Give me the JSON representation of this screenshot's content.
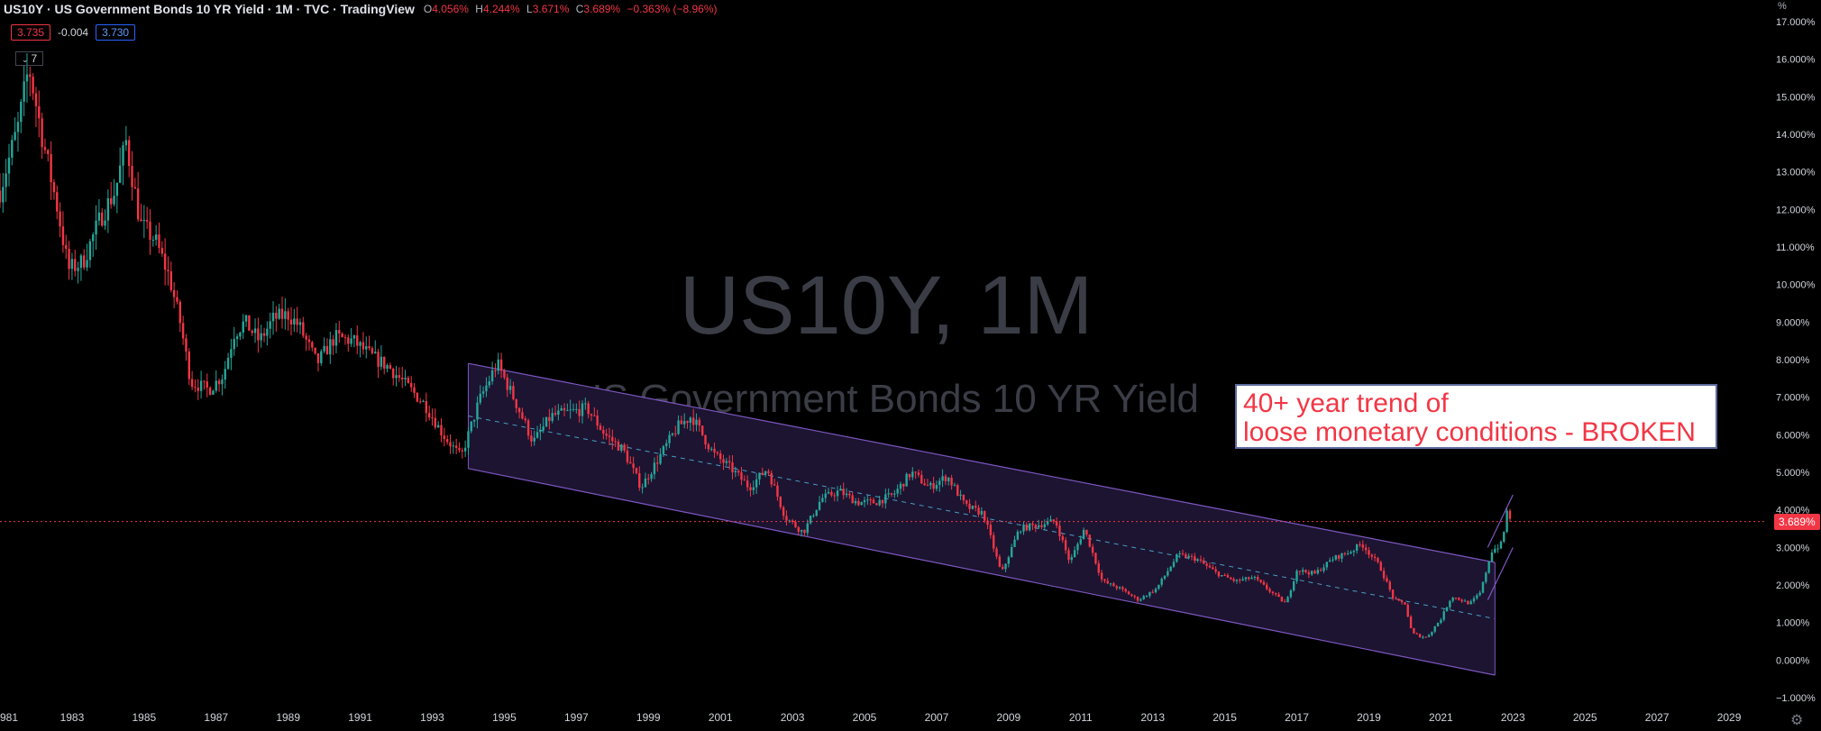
{
  "header": {
    "title": "US10Y · US Government Bonds 10 YR Yield · 1M · TVC · TradingView",
    "ohlc": [
      {
        "key": "O",
        "value": "4.056%"
      },
      {
        "key": "H",
        "value": "4.244%"
      },
      {
        "key": "L",
        "value": "3.671%"
      },
      {
        "key": "C",
        "value": "3.689%"
      },
      {
        "key": "",
        "value": "−0.363% (−8.96%)"
      }
    ],
    "sell": "3.735",
    "spread": "-0.004",
    "buy": "3.730",
    "indicator_count": "7"
  },
  "watermark": {
    "symbol": "US10Y, 1M",
    "name": "US Government Bonds 10 YR Yield"
  },
  "annotation": "40+ year trend of\nloose monetary conditions - BROKEN",
  "price_label": "3.689%",
  "colors": {
    "up": "#26a69a",
    "down": "#f23645",
    "channel": "#7e57c2",
    "channel_fill": "#1c1430",
    "midline": "#4a9ec9",
    "price_line": "#f23645"
  },
  "icons": {
    "settings": "gear-icon",
    "collapse": "chevron-down-icon"
  },
  "chart_data": {
    "type": "candlestick",
    "y_unit": "%",
    "ylim": [
      -1.0,
      17.0
    ],
    "y_ticks": [
      "−1.000%",
      "0.000%",
      "1.000%",
      "2.000%",
      "3.000%",
      "4.000%",
      "5.000%",
      "6.000%",
      "7.000%",
      "8.000%",
      "9.000%",
      "10.000%",
      "11.000%",
      "12.000%",
      "13.000%",
      "14.000%",
      "15.000%",
      "16.000%",
      "17.000%"
    ],
    "x_ticks": [
      "981",
      "1983",
      "1985",
      "1987",
      "1989",
      "1991",
      "1993",
      "1995",
      "1997",
      "1999",
      "2001",
      "2003",
      "2005",
      "2007",
      "2009",
      "2011",
      "2013",
      "2015",
      "2017",
      "2019",
      "2021",
      "2023",
      "2025",
      "2027",
      "2029"
    ],
    "xlim": [
      1981.0,
      2030.0
    ],
    "close_points": [
      {
        "x": 1981.0,
        "y": 12.5
      },
      {
        "x": 1981.5,
        "y": 14.2
      },
      {
        "x": 1981.8,
        "y": 15.8
      },
      {
        "x": 1982.2,
        "y": 13.8
      },
      {
        "x": 1982.6,
        "y": 12.0
      },
      {
        "x": 1982.9,
        "y": 10.4
      },
      {
        "x": 1983.3,
        "y": 10.6
      },
      {
        "x": 1983.8,
        "y": 11.8
      },
      {
        "x": 1984.2,
        "y": 12.5
      },
      {
        "x": 1984.5,
        "y": 13.8
      },
      {
        "x": 1984.9,
        "y": 11.6
      },
      {
        "x": 1985.3,
        "y": 11.2
      },
      {
        "x": 1985.7,
        "y": 10.2
      },
      {
        "x": 1986.0,
        "y": 9.0
      },
      {
        "x": 1986.3,
        "y": 7.4
      },
      {
        "x": 1986.8,
        "y": 7.2
      },
      {
        "x": 1987.2,
        "y": 7.6
      },
      {
        "x": 1987.5,
        "y": 8.7
      },
      {
        "x": 1987.8,
        "y": 9.0
      },
      {
        "x": 1988.2,
        "y": 8.5
      },
      {
        "x": 1988.6,
        "y": 9.1
      },
      {
        "x": 1989.0,
        "y": 9.2
      },
      {
        "x": 1989.3,
        "y": 8.9
      },
      {
        "x": 1989.8,
        "y": 7.9
      },
      {
        "x": 1990.3,
        "y": 8.6
      },
      {
        "x": 1990.8,
        "y": 8.5
      },
      {
        "x": 1991.3,
        "y": 8.1
      },
      {
        "x": 1991.8,
        "y": 7.8
      },
      {
        "x": 1992.3,
        "y": 7.3
      },
      {
        "x": 1992.8,
        "y": 6.8
      },
      {
        "x": 1993.3,
        "y": 6.0
      },
      {
        "x": 1993.8,
        "y": 5.4
      },
      {
        "x": 1994.3,
        "y": 6.9
      },
      {
        "x": 1994.8,
        "y": 7.9
      },
      {
        "x": 1995.3,
        "y": 6.9
      },
      {
        "x": 1995.8,
        "y": 5.8
      },
      {
        "x": 1996.3,
        "y": 6.5
      },
      {
        "x": 1996.8,
        "y": 6.6
      },
      {
        "x": 1997.3,
        "y": 6.7
      },
      {
        "x": 1997.8,
        "y": 6.0
      },
      {
        "x": 1998.3,
        "y": 5.6
      },
      {
        "x": 1998.8,
        "y": 4.6
      },
      {
        "x": 1999.3,
        "y": 5.4
      },
      {
        "x": 1999.8,
        "y": 6.2
      },
      {
        "x": 2000.2,
        "y": 6.5
      },
      {
        "x": 2000.8,
        "y": 5.5
      },
      {
        "x": 2001.3,
        "y": 5.1
      },
      {
        "x": 2001.8,
        "y": 4.6
      },
      {
        "x": 2002.3,
        "y": 5.1
      },
      {
        "x": 2002.8,
        "y": 3.8
      },
      {
        "x": 2003.3,
        "y": 3.4
      },
      {
        "x": 2003.8,
        "y": 4.3
      },
      {
        "x": 2004.3,
        "y": 4.5
      },
      {
        "x": 2004.8,
        "y": 4.2
      },
      {
        "x": 2005.3,
        "y": 4.2
      },
      {
        "x": 2005.8,
        "y": 4.4
      },
      {
        "x": 2006.3,
        "y": 5.0
      },
      {
        "x": 2006.8,
        "y": 4.6
      },
      {
        "x": 2007.3,
        "y": 4.9
      },
      {
        "x": 2007.8,
        "y": 4.1
      },
      {
        "x": 2008.3,
        "y": 3.9
      },
      {
        "x": 2008.8,
        "y": 2.3
      },
      {
        "x": 2009.3,
        "y": 3.5
      },
      {
        "x": 2009.8,
        "y": 3.6
      },
      {
        "x": 2010.3,
        "y": 3.7
      },
      {
        "x": 2010.7,
        "y": 2.6
      },
      {
        "x": 2011.1,
        "y": 3.5
      },
      {
        "x": 2011.6,
        "y": 2.1
      },
      {
        "x": 2012.1,
        "y": 1.9
      },
      {
        "x": 2012.6,
        "y": 1.6
      },
      {
        "x": 2013.1,
        "y": 1.9
      },
      {
        "x": 2013.7,
        "y": 2.8
      },
      {
        "x": 2014.2,
        "y": 2.7
      },
      {
        "x": 2014.8,
        "y": 2.3
      },
      {
        "x": 2015.3,
        "y": 2.1
      },
      {
        "x": 2015.8,
        "y": 2.2
      },
      {
        "x": 2016.3,
        "y": 1.8
      },
      {
        "x": 2016.7,
        "y": 1.5
      },
      {
        "x": 2017.0,
        "y": 2.4
      },
      {
        "x": 2017.5,
        "y": 2.3
      },
      {
        "x": 2018.0,
        "y": 2.7
      },
      {
        "x": 2018.5,
        "y": 2.9
      },
      {
        "x": 2018.8,
        "y": 3.1
      },
      {
        "x": 2019.3,
        "y": 2.5
      },
      {
        "x": 2019.7,
        "y": 1.6
      },
      {
        "x": 2020.0,
        "y": 1.5
      },
      {
        "x": 2020.2,
        "y": 0.7
      },
      {
        "x": 2020.6,
        "y": 0.6
      },
      {
        "x": 2021.0,
        "y": 1.1
      },
      {
        "x": 2021.3,
        "y": 1.7
      },
      {
        "x": 2021.8,
        "y": 1.5
      },
      {
        "x": 2022.1,
        "y": 1.8
      },
      {
        "x": 2022.4,
        "y": 2.9
      },
      {
        "x": 2022.7,
        "y": 3.1
      },
      {
        "x": 2022.85,
        "y": 4.05
      },
      {
        "x": 2022.95,
        "y": 3.689
      }
    ],
    "last_close": 3.689,
    "channel": {
      "upper": [
        {
          "x": 1994.0,
          "y": 7.9
        },
        {
          "x": 2022.5,
          "y": 2.6
        }
      ],
      "lower": [
        {
          "x": 1994.0,
          "y": 5.1
        },
        {
          "x": 2022.5,
          "y": -0.4
        }
      ],
      "mid": [
        {
          "x": 1994.0,
          "y": 6.5
        },
        {
          "x": 2022.5,
          "y": 1.1
        }
      ]
    },
    "breakout_channel": {
      "upper": [
        {
          "x": 2022.3,
          "y": 3.0
        },
        {
          "x": 2023.0,
          "y": 4.4
        }
      ],
      "lower": [
        {
          "x": 2022.3,
          "y": 1.6
        },
        {
          "x": 2023.0,
          "y": 3.0
        }
      ]
    }
  }
}
